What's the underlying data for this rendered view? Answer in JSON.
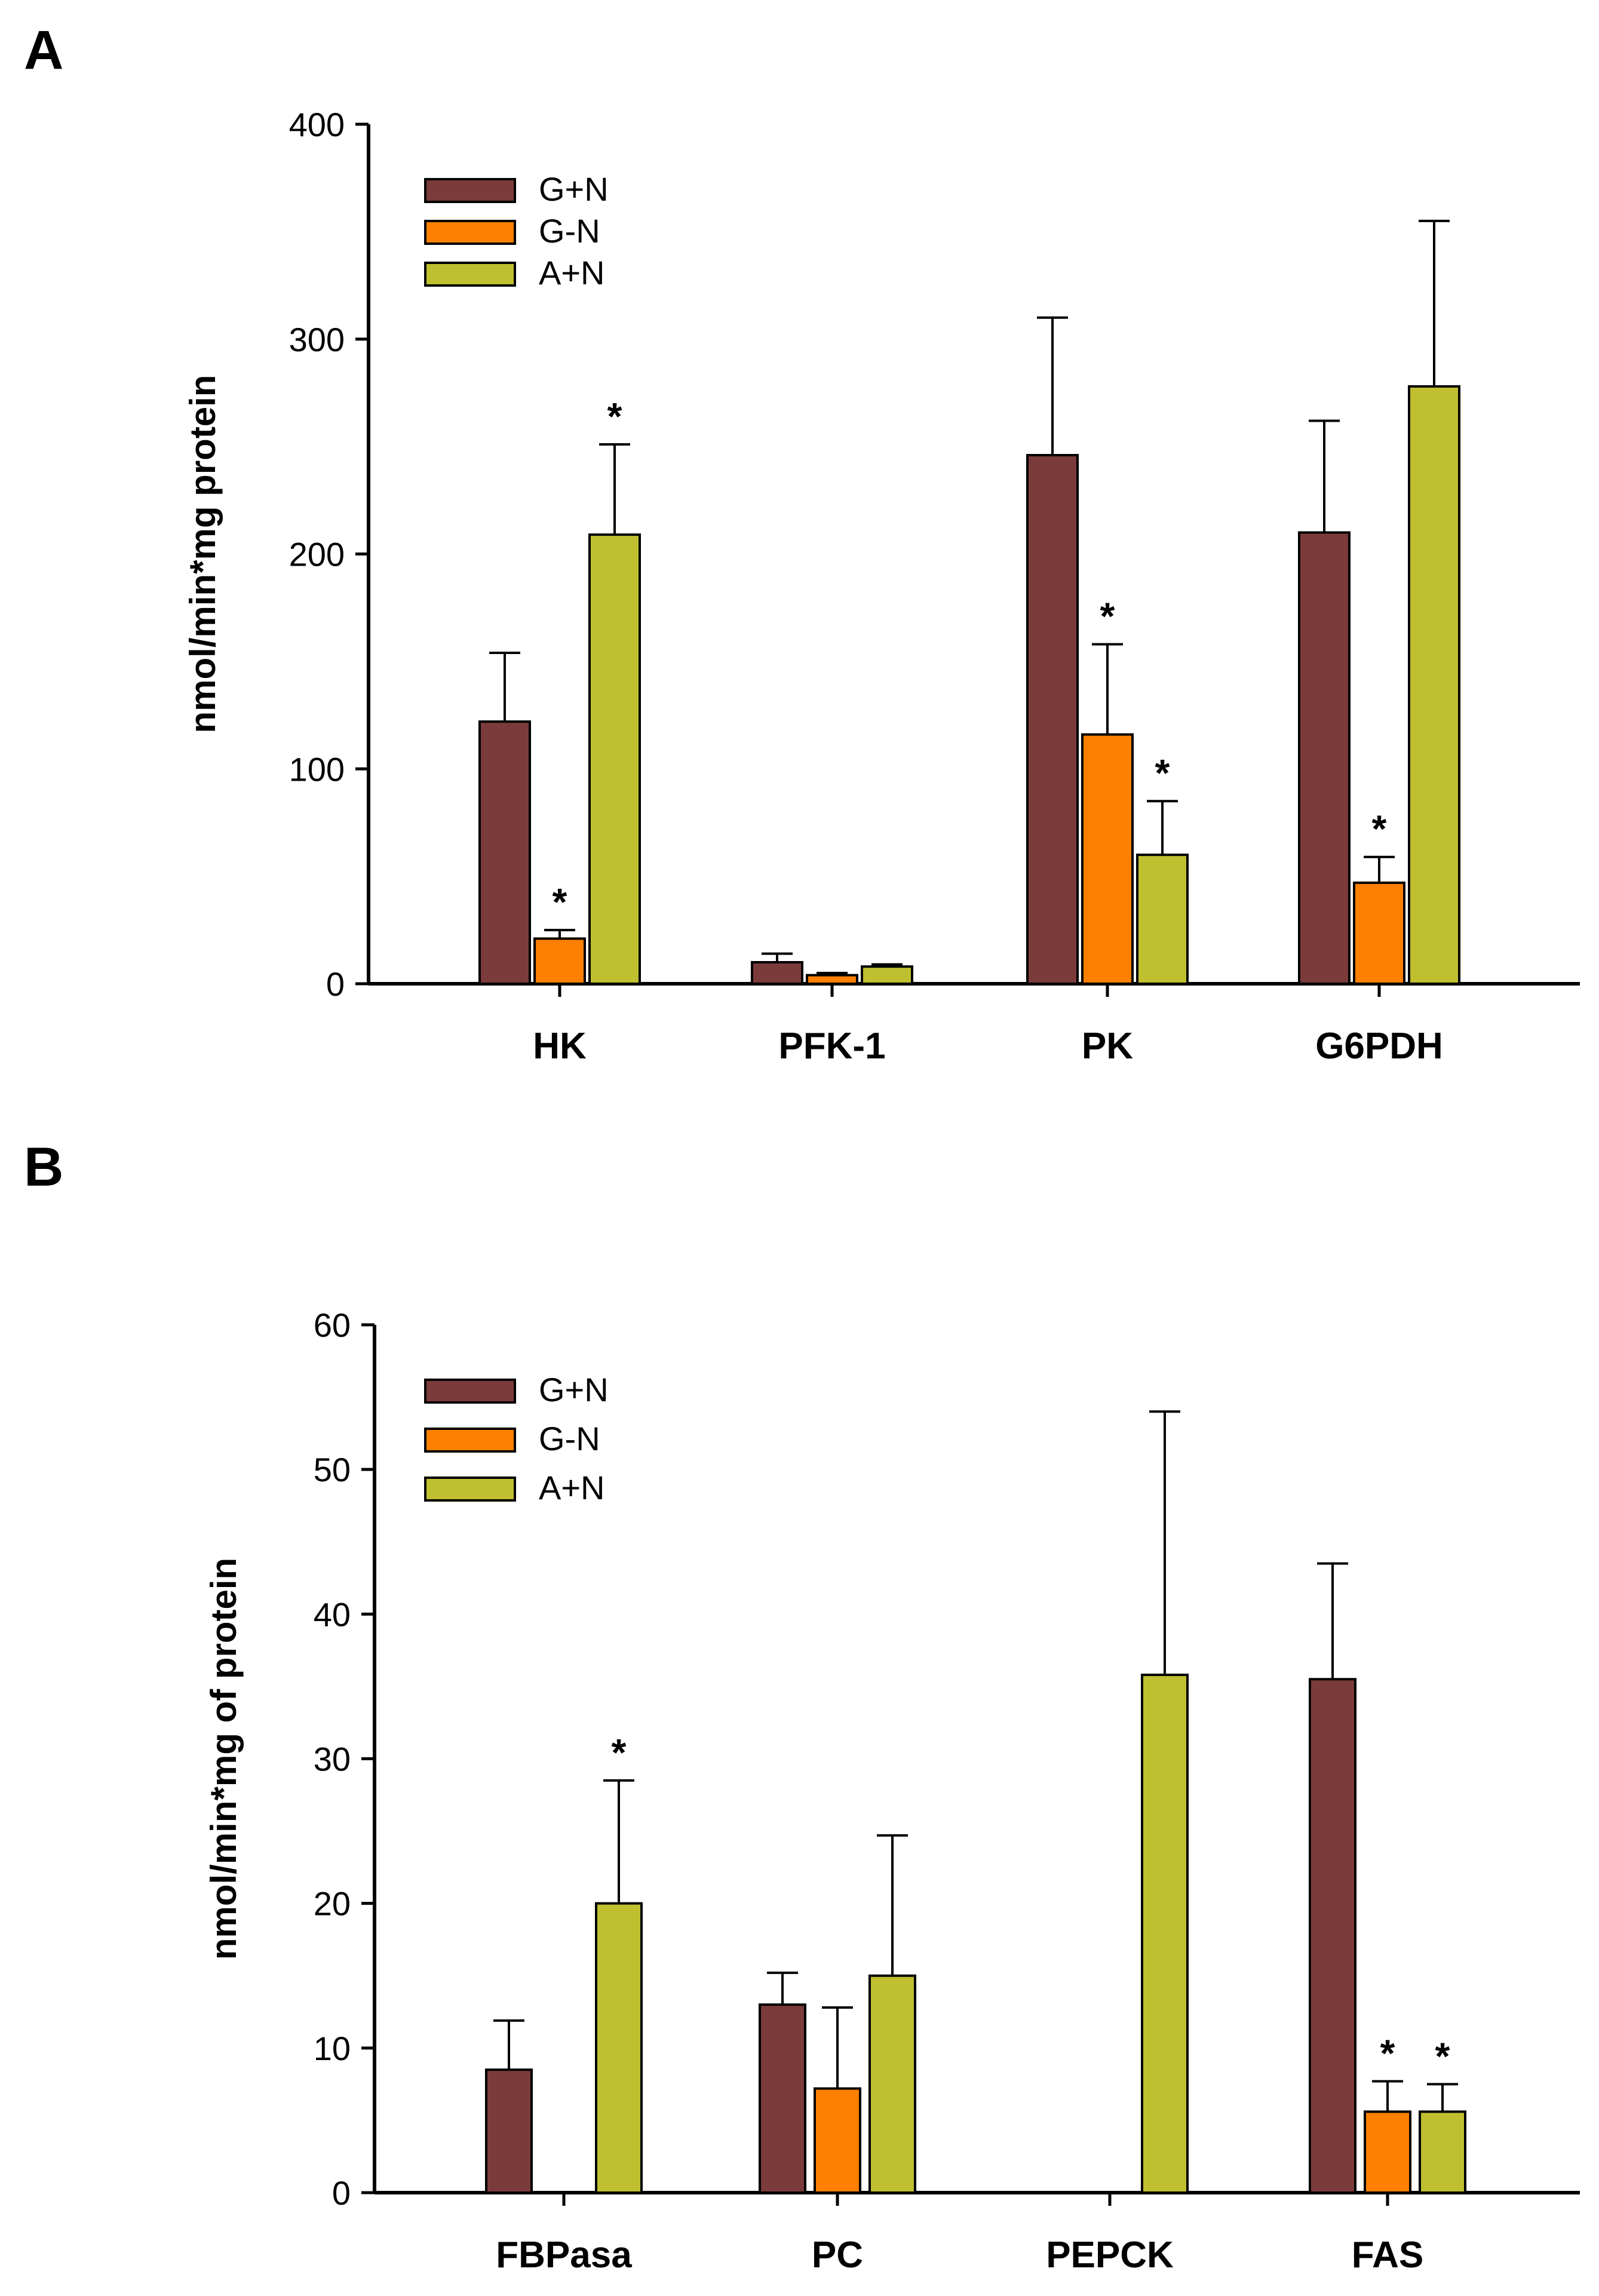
{
  "chart_data": [
    {
      "panel": "A",
      "type": "bar",
      "ylabel": "nmol/min*mg protein",
      "xlabel": "",
      "ylim": [
        0,
        400
      ],
      "yticks": [
        0,
        100,
        200,
        300,
        400
      ],
      "categories": [
        "HK",
        "PFK-1",
        "PK",
        "G6PDH"
      ],
      "series": [
        {
          "name": "G+N",
          "color": "#7b3b3b",
          "values": [
            122,
            10,
            246,
            210
          ],
          "errors": [
            32,
            4,
            64,
            52
          ],
          "significant": [
            false,
            false,
            false,
            false
          ]
        },
        {
          "name": "G-N",
          "color": "#ff8000",
          "values": [
            21,
            4,
            116,
            47
          ],
          "errors": [
            4,
            1,
            42,
            12
          ],
          "significant": [
            true,
            false,
            true,
            true
          ]
        },
        {
          "name": "A+N",
          "color": "#bfbf30",
          "values": [
            209,
            8,
            60,
            278
          ],
          "errors": [
            42,
            1,
            25,
            77
          ],
          "significant": [
            true,
            false,
            true,
            false
          ]
        }
      ],
      "significance_marker": "*",
      "legend_position": "top-left"
    },
    {
      "panel": "B",
      "type": "bar",
      "ylabel": "nmol/min*mg of protein",
      "xlabel": "",
      "ylim": [
        0,
        60
      ],
      "yticks": [
        0,
        10,
        20,
        30,
        40,
        50,
        60
      ],
      "categories": [
        "FBPasa",
        "PC",
        "PEPCK",
        "FAS"
      ],
      "series": [
        {
          "name": "G+N",
          "color": "#7b3b3b",
          "values": [
            8.5,
            13,
            0,
            35.5
          ],
          "errors": [
            3.4,
            2.2,
            0,
            8
          ],
          "significant": [
            false,
            false,
            false,
            false
          ]
        },
        {
          "name": "G-N",
          "color": "#ff8000",
          "values": [
            0,
            7.2,
            0,
            5.6
          ],
          "errors": [
            0,
            5.6,
            0,
            2.1
          ],
          "significant": [
            false,
            false,
            false,
            true
          ]
        },
        {
          "name": "A+N",
          "color": "#bfbf30",
          "values": [
            20,
            15,
            35.8,
            5.6
          ],
          "errors": [
            8.5,
            9.7,
            18.2,
            1.9
          ],
          "significant": [
            true,
            false,
            false,
            true
          ]
        }
      ],
      "significance_marker": "*",
      "legend_position": "top-left"
    }
  ]
}
